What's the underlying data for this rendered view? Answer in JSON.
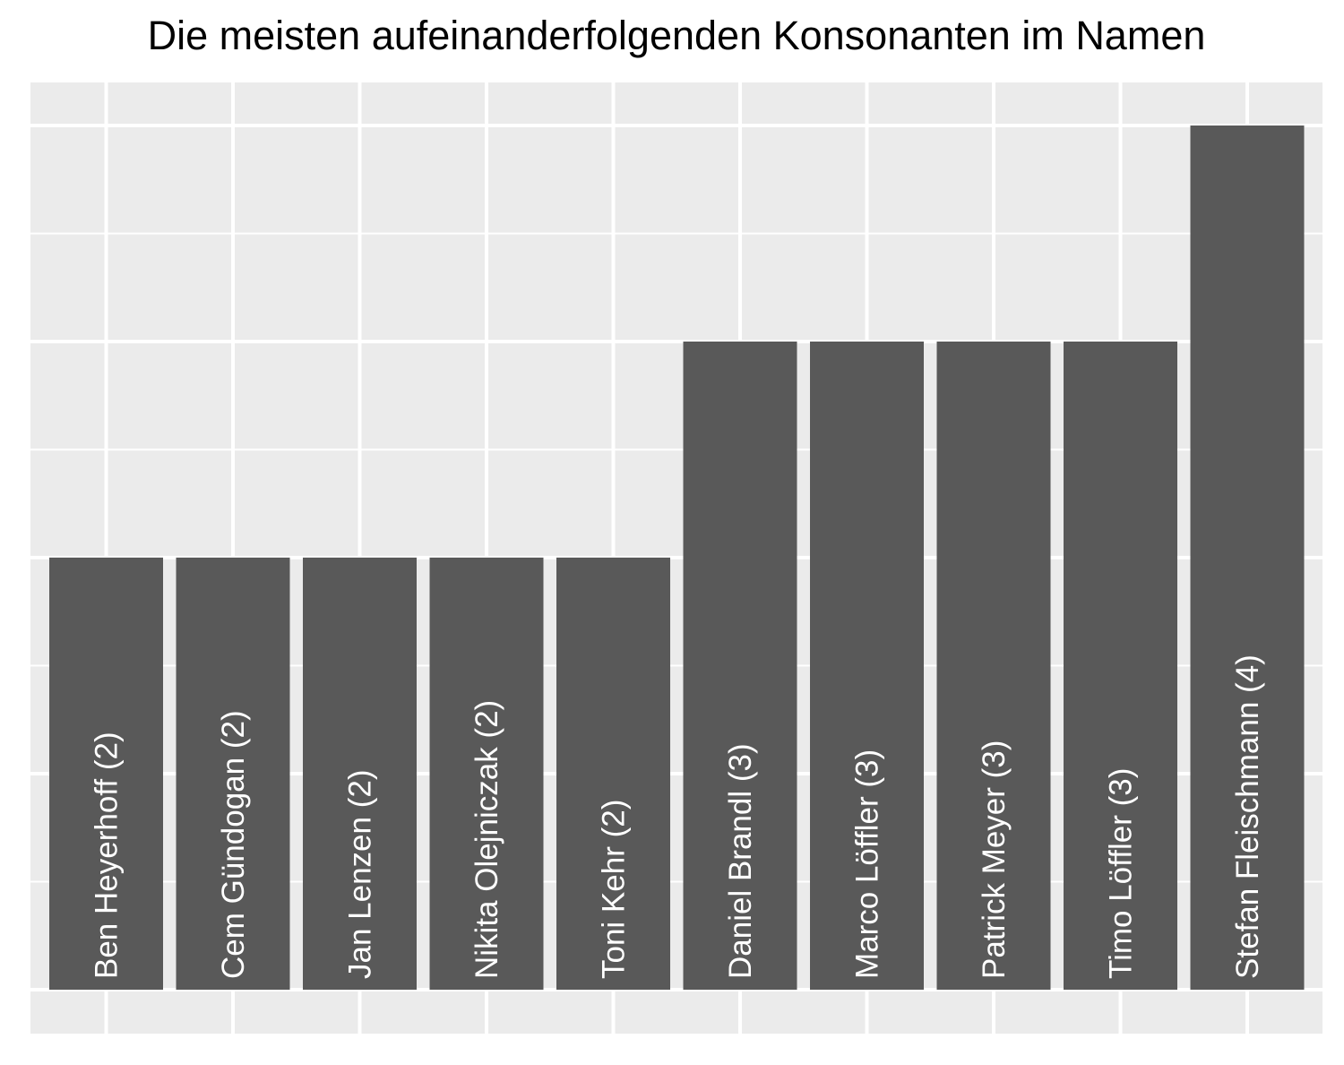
{
  "chart_data": {
    "type": "bar",
    "title": "Die meisten aufeinanderfolgenden Konsonanten im Namen",
    "xlabel": "",
    "ylabel": "",
    "ylim": [
      0,
      4.2
    ],
    "grid": true,
    "categories": [
      "Ben Heyerhoff (2)",
      "Cem Gündogan (2)",
      "Jan Lenzen (2)",
      "Nikita Olejniczak (2)",
      "Toni Kehr (2)",
      "Daniel Brandl (3)",
      "Marco Löffler (3)",
      "Patrick Meyer (3)",
      "Timo Löffler (3)",
      "Stefan Fleischmann (4)"
    ],
    "values": [
      2,
      2,
      2,
      2,
      2,
      3,
      3,
      3,
      3,
      4
    ],
    "colors": {
      "bar": "#595959",
      "panel": "#ebebeb",
      "grid": "#ffffff",
      "label": "#ffffff"
    }
  }
}
